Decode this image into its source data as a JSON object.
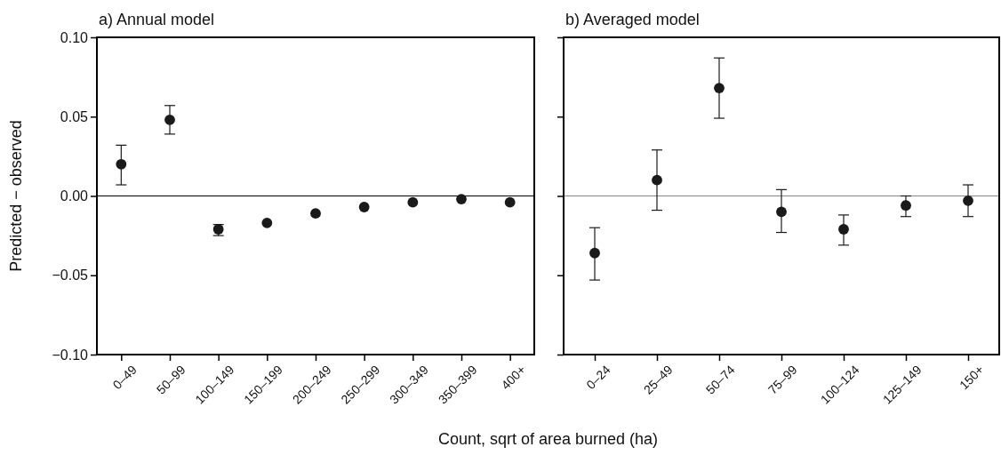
{
  "chart_data": [
    {
      "type": "scatter",
      "title": "a) Annual model",
      "xlabel": "Count, sqrt of area burned (ha)",
      "ylabel": "Predicted − observed",
      "categories": [
        "0–49",
        "50–99",
        "100–149",
        "150–199",
        "200–249",
        "250–299",
        "300–349",
        "350–399",
        "400+"
      ],
      "series": [
        {
          "color": "#1a1a1a",
          "values": [
            0.02,
            0.048,
            -0.021,
            -0.017,
            -0.011,
            -0.007,
            -0.004,
            -0.002,
            -0.004
          ],
          "errors": [
            [
              0.007,
              0.032
            ],
            [
              0.039,
              0.057
            ],
            [
              -0.025,
              -0.018
            ],
            null,
            null,
            null,
            null,
            null,
            null
          ]
        }
      ],
      "ylim": [
        -0.1,
        0.1
      ],
      "yticks": [
        {
          "value": -0.1,
          "label": "−0.10"
        },
        {
          "value": -0.05,
          "label": "−0.05"
        },
        {
          "value": 0,
          "label": "0.00"
        },
        {
          "value": 0.05,
          "label": "0.05"
        },
        {
          "value": 0.1,
          "label": "0.10"
        }
      ],
      "ref_lines": [
        {
          "axis": "y",
          "value": 0,
          "color": "#000000"
        }
      ],
      "marker": "circle",
      "grid": false
    },
    {
      "type": "scatter",
      "title": "b) Averaged model",
      "categories": [
        "0–24",
        "25–49",
        "50–74",
        "75–99",
        "100–124",
        "125–149",
        "150+"
      ],
      "series": [
        {
          "color": "#1a1a1a",
          "values": [
            -0.036,
            0.01,
            0.068,
            -0.01,
            -0.021,
            -0.006,
            -0.003
          ],
          "errors": [
            [
              -0.053,
              -0.02
            ],
            [
              -0.009,
              0.029
            ],
            [
              0.049,
              0.087
            ],
            [
              -0.023,
              0.004
            ],
            [
              -0.031,
              -0.012
            ],
            [
              -0.013,
              0.0
            ],
            [
              -0.013,
              0.007
            ]
          ]
        }
      ],
      "ylim": [
        -0.1,
        0.1
      ],
      "yticks": [
        -0.1,
        -0.05,
        0,
        0.05,
        0.1
      ],
      "tick_labels": "x",
      "ref_lines": [
        {
          "axis": "y",
          "value": 0,
          "color": "#888888"
        }
      ],
      "marker": "circle",
      "grid": false
    }
  ]
}
